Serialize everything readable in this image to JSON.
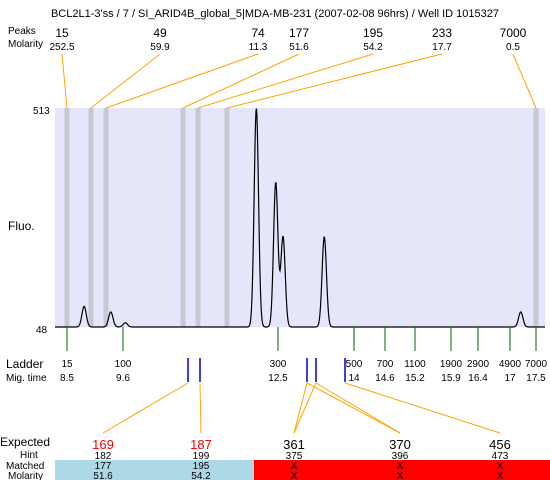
{
  "header": {
    "title": "BCL2L1-3'ss / 7 / SI_ARID4B_global_5|MDA-MB-231 (2007-02-08 96hrs) / Well ID 1015327",
    "peaks_label": "Peaks",
    "molarity_label": "Molarity"
  },
  "top_peaks": [
    {
      "size": "15",
      "molarity": "252.5"
    },
    {
      "size": "49",
      "molarity": "59.9"
    },
    {
      "size": "74",
      "molarity": "11.3"
    },
    {
      "size": "177",
      "molarity": "51.6"
    },
    {
      "size": "195",
      "molarity": "54.2"
    },
    {
      "size": "233",
      "molarity": "17.7"
    },
    {
      "size": "7000",
      "molarity": "0.5"
    }
  ],
  "chart_data": {
    "type": "line",
    "ylabel": "Fluo.",
    "y_ticks": [
      "513",
      "48"
    ],
    "ylim": [
      48,
      513
    ],
    "x_mig_time": [
      7.9,
      18.0
    ],
    "peaks": [
      {
        "time": 8.5,
        "height": 92
      },
      {
        "time": 9.05,
        "height": 80
      },
      {
        "time": 9.35,
        "height": 57
      },
      {
        "time": 12.05,
        "height": 513
      },
      {
        "time": 12.45,
        "height": 355
      },
      {
        "time": 12.6,
        "height": 240
      },
      {
        "time": 13.45,
        "height": 240
      },
      {
        "time": 17.5,
        "height": 80
      }
    ],
    "baseline": 48,
    "ladder_label": "Ladder",
    "migtime_label": "Mig. time",
    "ladder": [
      {
        "size": "15",
        "time": "8.5"
      },
      {
        "size": "100",
        "time": "9.6"
      },
      {
        "size": "300",
        "time": "12.5"
      },
      {
        "size": "500",
        "time": "14"
      },
      {
        "size": "700",
        "time": "14.6"
      },
      {
        "size": "1100",
        "time": "15.2"
      },
      {
        "size": "1900",
        "time": "15.9"
      },
      {
        "size": "2900",
        "time": "16.4"
      },
      {
        "size": "4900",
        "time": "17"
      },
      {
        "size": "7000",
        "time": "17.5"
      }
    ]
  },
  "expected": {
    "labels": {
      "expected": "Expected",
      "hint": "Hint",
      "matched": "Matched",
      "molarity": "Molarity"
    },
    "columns": [
      {
        "expected": "169",
        "hint": "182",
        "matched": "177",
        "molarity": "51.6",
        "status": "matched"
      },
      {
        "expected": "187",
        "hint": "199",
        "matched": "195",
        "molarity": "54.2",
        "status": "matched"
      },
      {
        "expected": "361",
        "hint": "375",
        "matched": "X",
        "molarity": "X",
        "status": "missing"
      },
      {
        "expected": "370",
        "hint": "396",
        "matched": "X",
        "molarity": "X",
        "status": "missing"
      },
      {
        "expected": "456",
        "hint": "473",
        "matched": "X",
        "molarity": "X",
        "status": "missing"
      }
    ]
  },
  "colors": {
    "plot_bg": "#e6e6fa",
    "peak_band": "#c8c8d2",
    "ladder_tick": "#006400",
    "marker": "#0000cc",
    "connector": "#ffa500",
    "expected_red": "#ff0000",
    "matched_bg": "#add8e6",
    "missing_bg": "#ff0000"
  }
}
